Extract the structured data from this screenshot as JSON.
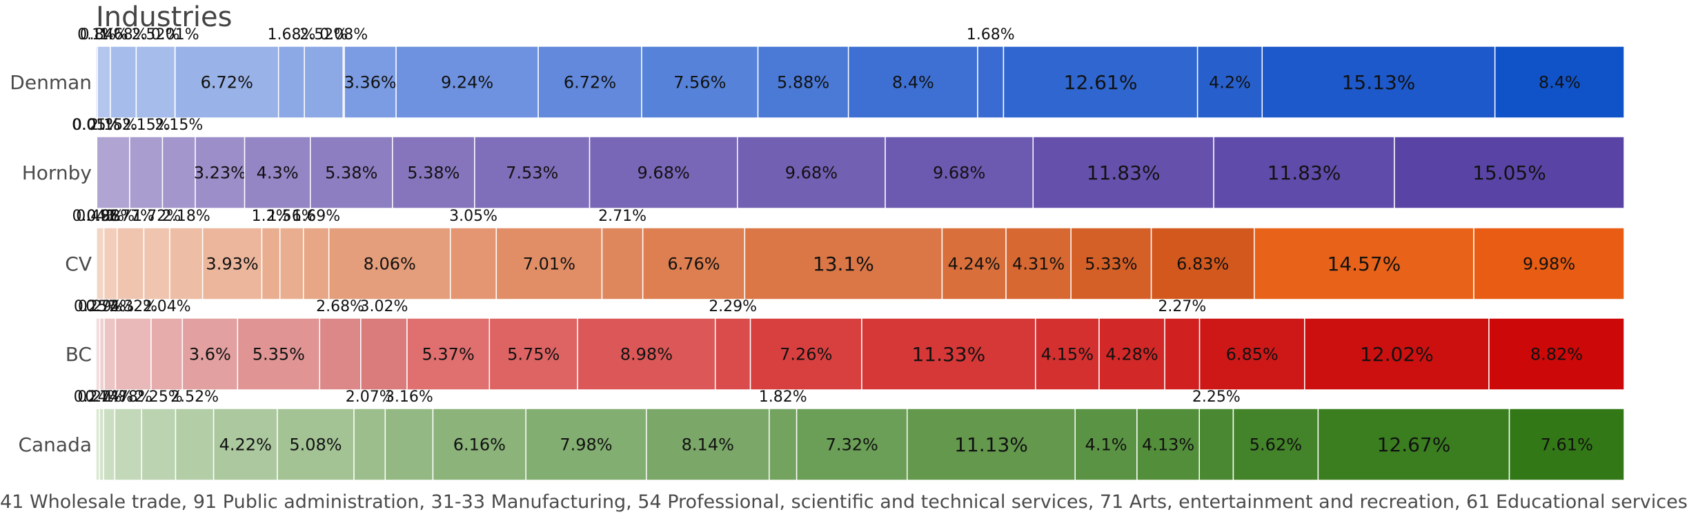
{
  "chart_data": {
    "type": "bar",
    "orientation": "horizontal-stacked-percent",
    "title": "Industries",
    "xlabel": "41 Wholesale trade, 91 Public administration, 31-33 Manufacturing, 54 Professional, scientific and technical services, 71 Arts, entertainment and recreation, 61 Educational services",
    "ylabel": "",
    "xlim": [
      0,
      100
    ],
    "grid": false,
    "categories": [
      "Denman",
      "Hornby",
      "CV",
      "BC",
      "Canada"
    ],
    "rows": [
      {
        "name": "Denman",
        "values": [
          0.1,
          0.84,
          1.68,
          2.52,
          0.01,
          6.72,
          1.68,
          2.52,
          0.08,
          3.36,
          9.24,
          6.72,
          7.56,
          5.88,
          8.4,
          1.68,
          12.61,
          4.2,
          15.13,
          8.4
        ],
        "colors": [
          "#c2d0ef",
          "#b4c6ee",
          "#a6bdeb",
          "#a6bdeb",
          "#b4c6ee",
          "#99b2e7",
          "#8ca8e5",
          "#8ca8e5",
          "#85a3e4",
          "#7b9ce2",
          "#6e92df",
          "#6289dc",
          "#5682d9",
          "#4a79d6",
          "#3e70d4",
          "#3a6bd2",
          "#2f66cf",
          "#2760cd",
          "#1d59cb",
          "#1053c9"
        ]
      },
      {
        "name": "Hornby",
        "values": [
          0.01,
          0.05,
          2.15,
          2.15,
          2.15,
          3.23,
          4.3,
          5.38,
          5.38,
          7.53,
          9.68,
          9.68,
          9.68,
          11.83,
          11.83,
          15.05
        ],
        "colors": [
          "#b7acd5",
          "#b7acd5",
          "#b0a4d2",
          "#a99dcf",
          "#a396cc",
          "#9c8ec9",
          "#9485c4",
          "#8d7dc1",
          "#8675bd",
          "#7f6eba",
          "#7866b7",
          "#7260b3",
          "#6c59b0",
          "#6551ac",
          "#5f4ba9",
          "#5944a5"
        ]
      },
      {
        "name": "CV",
        "values": [
          0.04,
          0.49,
          0.88,
          1.77,
          1.72,
          2.18,
          3.93,
          1.2,
          1.56,
          1.69,
          8.06,
          3.05,
          7.01,
          2.71,
          6.76,
          13.1,
          4.24,
          4.31,
          5.33,
          6.83,
          14.57,
          9.98
        ],
        "colors": [
          "#f5dccf",
          "#f3d5c5",
          "#f1cdba",
          "#efc5b0",
          "#efc5b0",
          "#edbda5",
          "#ebb69b",
          "#e9ae90",
          "#e9ae90",
          "#e7a686",
          "#e59e7b",
          "#e39671",
          "#e18e66",
          "#df875c",
          "#dd7f51",
          "#db7747",
          "#d9703c",
          "#d76832",
          "#d56027",
          "#d3581d",
          "#e86319",
          "#e85d13"
        ]
      },
      {
        "name": "BC",
        "values": [
          0.25,
          0.29,
          0.74,
          2.32,
          2.04,
          3.6,
          5.35,
          2.68,
          3.02,
          5.37,
          5.75,
          8.98,
          2.29,
          7.26,
          11.33,
          4.15,
          4.28,
          2.27,
          6.85,
          12.02,
          8.82
        ],
        "colors": [
          "#f2dcdc",
          "#efd0d0",
          "#ecc4c4",
          "#e9b8b8",
          "#e6acac",
          "#e3a0a0",
          "#e09494",
          "#dd8888",
          "#da7c7c",
          "#e06f6f",
          "#de6464",
          "#dc5858",
          "#da4c4c",
          "#d84040",
          "#d63838",
          "#d43030",
          "#d22828",
          "#d02020",
          "#ce1818",
          "#cc1010",
          "#cc0808"
        ]
      },
      {
        "name": "Canada",
        "values": [
          0.24,
          0.27,
          0.74,
          1.78,
          2.25,
          2.52,
          4.22,
          5.08,
          2.07,
          3.16,
          6.16,
          7.98,
          8.14,
          1.82,
          7.32,
          11.13,
          4.1,
          4.13,
          2.25,
          5.62,
          12.67,
          7.61
        ],
        "colors": [
          "#dbe8d4",
          "#d3e3cb",
          "#cbdec2",
          "#c3d8b9",
          "#bbd3b0",
          "#b3cea7",
          "#abc89e",
          "#a3c395",
          "#9bbe8c",
          "#93b883",
          "#8bb37a",
          "#83ae71",
          "#7ba868",
          "#73a35f",
          "#6b9e56",
          "#63984d",
          "#5b9344",
          "#538e3b",
          "#4b8832",
          "#438329",
          "#3b7e20",
          "#337817"
        ]
      }
    ],
    "outside_labels": {
      "Denman": [
        "0.1%",
        "0.84%",
        "1.68%",
        "2.52%",
        "0.01%",
        "1.68%",
        "2.52%",
        "0.08%",
        "3.36%",
        "1.68%"
      ],
      "Hornby": [
        "0.01%",
        "0.05%",
        "2.15%",
        "2.15%",
        "2.15%",
        "3.23%"
      ],
      "CV": [
        "0.04%",
        "0.49%",
        "0.88%",
        "1.77%",
        "1.72%",
        "2.18%",
        "3.93%",
        "1.2%",
        "1.56%",
        "1.69%",
        "3.05%",
        "2.71%"
      ],
      "BC": [
        "0.25%",
        "0.29%",
        "0.74%",
        "2.32%",
        "2.04%",
        "3.6%",
        "2.68%",
        "3.02%",
        "2.29%",
        "2.27%"
      ],
      "Canada": [
        "0.24%",
        "0.27%",
        "0.74%",
        "1.78%",
        "2.25%",
        "2.52%",
        "2.07%",
        "3.16%",
        "1.82%",
        "2.25%"
      ]
    }
  }
}
